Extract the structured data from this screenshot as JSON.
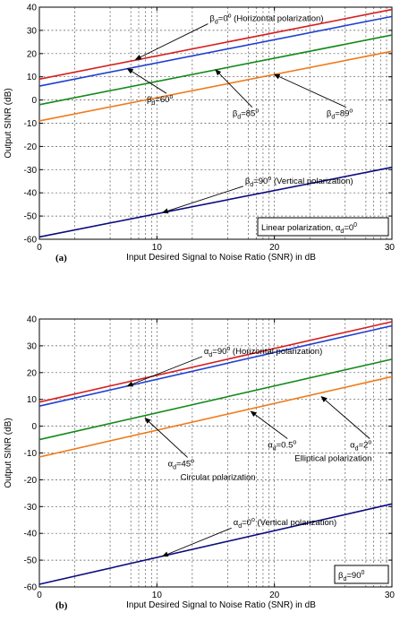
{
  "chart_data": [
    {
      "type": "line",
      "panel_label": "(a)",
      "xlabel": "Input Desired Signal to Noise Ratio (SNR) in dB",
      "ylabel": "Output SINR (dB)",
      "xlim": [
        0,
        30
      ],
      "ylim": [
        -60,
        40
      ],
      "xticks": [
        0,
        10,
        20,
        30
      ],
      "yticks": [
        40,
        30,
        20,
        10,
        0,
        -10,
        -20,
        -30,
        -40,
        -50,
        -60
      ],
      "grid": true,
      "series": [
        {
          "color": "#d62020",
          "x": [
            0,
            30
          ],
          "y": [
            9,
            39
          ]
        },
        {
          "color": "#1f3fd0",
          "x": [
            0,
            30
          ],
          "y": [
            6,
            36
          ]
        },
        {
          "color": "#138a1a",
          "x": [
            0,
            30
          ],
          "y": [
            -2,
            28
          ]
        },
        {
          "color": "#f07a1a",
          "x": [
            0,
            30
          ],
          "y": [
            -9,
            21
          ]
        },
        {
          "color": "#0b0b80",
          "x": [
            0,
            30
          ],
          "y": [
            -59,
            -29
          ]
        }
      ],
      "annotations": [
        {
          "greek": "β",
          "sub": "d",
          "text": "=0",
          "sup": "o",
          "suffix": " (Horizontal polarization)",
          "pos": [
            14.5,
            34
          ],
          "arrow_to": [
            8.2,
            17.5
          ]
        },
        {
          "greek": "β",
          "sub": "d",
          "text": "=60",
          "sup": "o",
          "suffix": "",
          "pos": [
            10.2,
            -1
          ],
          "arrow_to": [
            7.5,
            13.5
          ]
        },
        {
          "greek": "β",
          "sub": "d",
          "text": "=85",
          "sup": "o",
          "suffix": "",
          "pos": [
            17.5,
            -7
          ],
          "arrow_to": [
            15,
            13
          ]
        },
        {
          "greek": "β",
          "sub": "d",
          "text": "=89",
          "sup": "o",
          "suffix": "",
          "pos": [
            25.5,
            -7
          ],
          "arrow_to": [
            20,
            11
          ]
        },
        {
          "greek": "β",
          "sub": "d",
          "text": "=90",
          "sup": "o",
          "suffix": " (Vertical polarization)",
          "pos": [
            17.5,
            -36
          ],
          "arrow_to": [
            10.5,
            -48.5
          ]
        }
      ],
      "legend_box": {
        "prefix": "Linear polarization, ",
        "greek": "α",
        "sub": "d",
        "text": "=0",
        "sup": "0"
      }
    },
    {
      "type": "line",
      "panel_label": "(b)",
      "xlabel": "Input Desired Signal to Noise Ratio (SNR) in dB",
      "ylabel": "Output SINR (dB)",
      "xlim": [
        0,
        30
      ],
      "ylim": [
        -60,
        40
      ],
      "xticks": [
        0,
        10,
        20,
        30
      ],
      "yticks": [
        40,
        30,
        20,
        10,
        0,
        -10,
        -20,
        -30,
        -40,
        -50,
        -60
      ],
      "grid": true,
      "series": [
        {
          "color": "#d62020",
          "x": [
            0,
            30
          ],
          "y": [
            9,
            39
          ]
        },
        {
          "color": "#1f3fd0",
          "x": [
            0,
            30
          ],
          "y": [
            7.5,
            37.5
          ]
        },
        {
          "color": "#138a1a",
          "x": [
            0,
            30
          ],
          "y": [
            -5,
            25
          ]
        },
        {
          "color": "#f07a1a",
          "x": [
            0,
            30
          ],
          "y": [
            -11.5,
            18.5
          ]
        },
        {
          "color": "#0b0b80",
          "x": [
            0,
            30
          ],
          "y": [
            -59,
            -29
          ]
        }
      ],
      "annotations": [
        {
          "greek": "α",
          "sub": "d",
          "text": "=90",
          "sup": "o",
          "suffix": " (Horizontal polarization)",
          "pos": [
            14,
            27
          ],
          "arrow_to": [
            7.5,
            15
          ]
        },
        {
          "greek": "α",
          "sub": "d",
          "text": "=45",
          "sup": "o",
          "suffix": "",
          "pos": [
            12,
            -15
          ],
          "arrow_to": [
            9,
            3
          ]
        },
        {
          "greek": "α",
          "sub": "d",
          "text": "=0.5",
          "sup": "o",
          "suffix": "",
          "pos": [
            20.5,
            -8
          ],
          "arrow_to": [
            18,
            5.5
          ]
        },
        {
          "greek": "α",
          "sub": "d",
          "text": "=2",
          "sup": "o",
          "suffix": "",
          "pos": [
            27.5,
            -8
          ],
          "arrow_to": [
            24,
            11
          ]
        },
        {
          "greek": "α",
          "sub": "d",
          "text": "=0",
          "sup": "o",
          "suffix": " (Vertical polarization)",
          "pos": [
            16.5,
            -37
          ],
          "arrow_to": [
            10.5,
            -48.5
          ]
        }
      ],
      "extra_labels": [
        {
          "text": "Circular polarization",
          "pos": [
            15.2,
            -20
          ]
        },
        {
          "text": "Elliptical polarization",
          "pos": [
            25,
            -13
          ]
        }
      ],
      "legend_box": {
        "prefix": "",
        "greek": "β",
        "sub": "d",
        "text": "=90",
        "sup": "0"
      }
    }
  ]
}
